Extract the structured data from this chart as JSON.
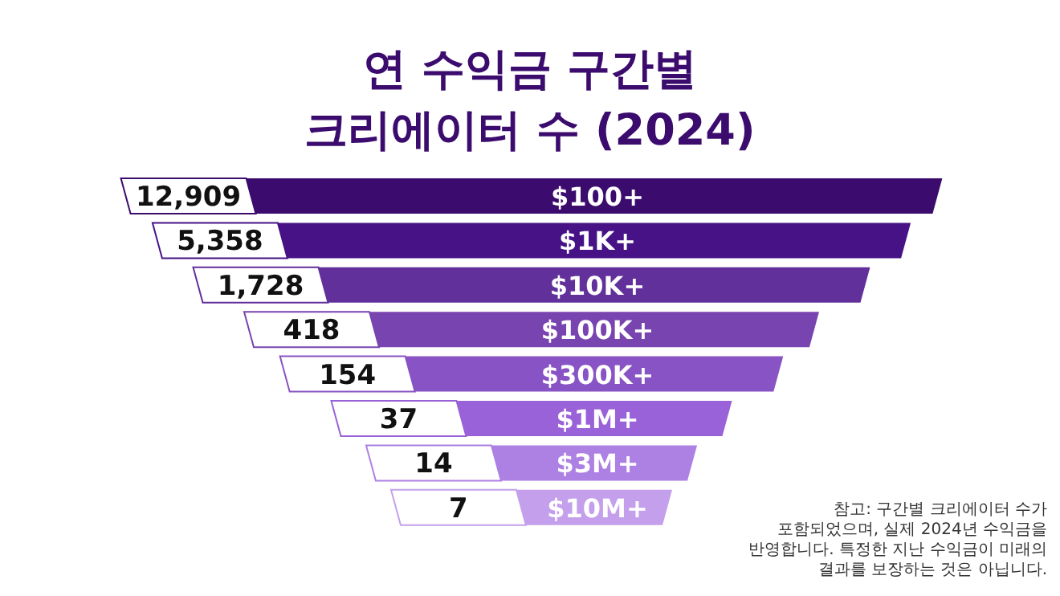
{
  "chart_data": {
    "type": "other",
    "title": "연 수익금 구간별\n크리에이터 수 (2024)",
    "categories": [
      "$100+",
      "$1K+",
      "$10K+",
      "$100K+",
      "$300K+",
      "$1M+",
      "$3M+",
      "$10M+"
    ],
    "colors": [
      "#3b0b6e",
      "#461285",
      "#61309a",
      "#7844b0",
      "#8853c4",
      "#9a62d8",
      "#ad80e3",
      "#c4a0ec"
    ],
    "values": [
      12909,
      5358,
      1728,
      418,
      154,
      37,
      14,
      7
    ],
    "value_labels": [
      "12,909",
      "5,358",
      "1,728",
      "418",
      "154",
      "37",
      "14",
      "7"
    ],
    "annotations": [
      "참고: 구간별 크리에이터 수가 포함되었으며, 실제 2024년 수익금을 반영합니다. 특정한 지난 수익금이 미래의 결과를 보장하는 것은 아닙니다."
    ]
  }
}
